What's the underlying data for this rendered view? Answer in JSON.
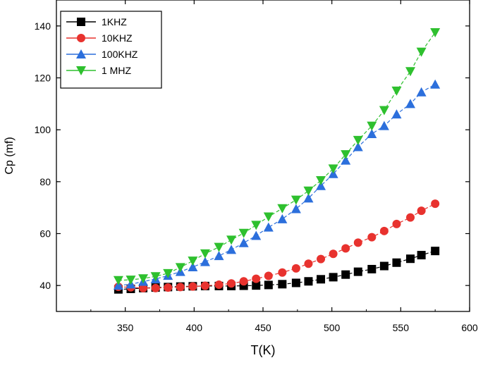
{
  "chart_data": {
    "type": "line",
    "title": "",
    "xlabel": "T(K)",
    "ylabel": "Cp (mf)",
    "xlim": [
      300,
      600
    ],
    "ylim": [
      30,
      150
    ],
    "xticks": [
      350,
      400,
      450,
      500,
      550,
      600
    ],
    "yticks": [
      40,
      60,
      80,
      100,
      120,
      140
    ],
    "grid": false,
    "legend_position": "top-left",
    "x": [
      345,
      354,
      363,
      372,
      381,
      390,
      399,
      408,
      418,
      427,
      436,
      445,
      454,
      464,
      474,
      483,
      492,
      501,
      510,
      519,
      529,
      538,
      547,
      557,
      565,
      575
    ],
    "series": [
      {
        "name": "1KHZ",
        "color": "#000000",
        "marker": "square",
        "values": [
          38.5,
          38.7,
          39.0,
          39.2,
          39.4,
          39.6,
          39.7,
          39.8,
          39.8,
          39.8,
          39.9,
          40.0,
          40.2,
          40.5,
          41.0,
          41.6,
          42.4,
          43.2,
          44.2,
          45.3,
          46.3,
          47.5,
          48.8,
          50.3,
          51.7,
          53.3
        ]
      },
      {
        "name": "10KHZ",
        "color": "#e8322e",
        "marker": "circle",
        "values": [
          39.5,
          39.3,
          39.0,
          39.0,
          39.2,
          39.4,
          39.6,
          39.9,
          40.3,
          40.8,
          41.6,
          42.6,
          43.7,
          45.0,
          46.6,
          48.4,
          50.2,
          52.2,
          54.3,
          56.5,
          58.6,
          61.0,
          63.7,
          66.2,
          68.8,
          71.5
        ]
      },
      {
        "name": "100KHZ",
        "color": "#2c6fdc",
        "marker": "triangle-up",
        "values": [
          40.0,
          40.5,
          41.5,
          42.5,
          43.8,
          45.3,
          47.1,
          49.1,
          51.4,
          53.8,
          56.4,
          59.2,
          62.4,
          65.6,
          69.5,
          73.6,
          78.4,
          83.0,
          88.2,
          93.4,
          98.4,
          101.5,
          106.0,
          110.0,
          114.5,
          117.5
        ]
      },
      {
        "name": "1 MHZ",
        "color": "#2ec02e",
        "marker": "triangle-down",
        "values": [
          42.0,
          42.2,
          42.7,
          43.5,
          44.7,
          47.0,
          49.5,
          52.3,
          54.8,
          57.6,
          60.2,
          63.3,
          66.5,
          69.7,
          73.0,
          76.5,
          80.5,
          85.0,
          90.5,
          96.0,
          101.5,
          107.5,
          115.0,
          122.5,
          130.0,
          137.5
        ]
      }
    ]
  }
}
